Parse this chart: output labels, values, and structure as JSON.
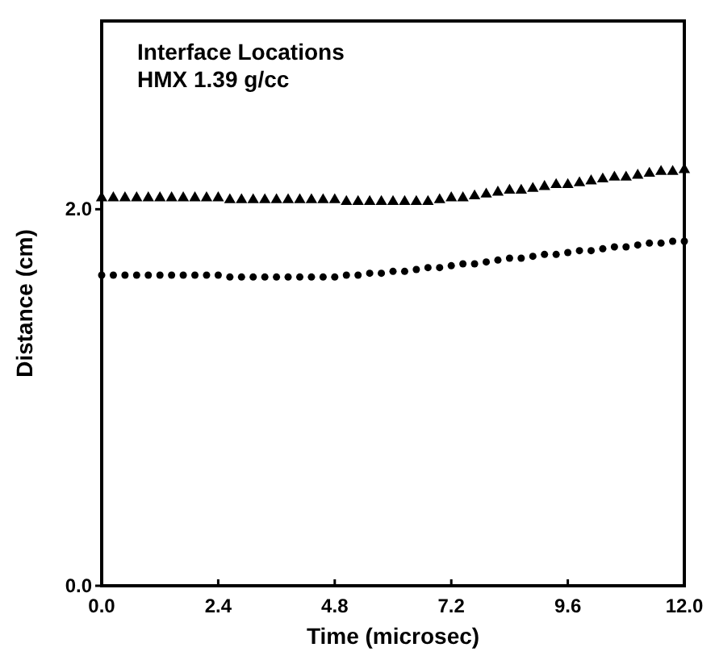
{
  "chart_data": {
    "type": "scatter",
    "title": "Interface Locations",
    "subtitle": "HMX 1.39 g/cc",
    "xlabel": "Time (microsec)",
    "ylabel": "Distance (cm)",
    "x": [
      0,
      0.24,
      0.48,
      0.72,
      0.96,
      1.2,
      1.44,
      1.68,
      1.92,
      2.16,
      2.4,
      2.64,
      2.88,
      3.12,
      3.36,
      3.6,
      3.84,
      4.08,
      4.32,
      4.56,
      4.8,
      5.04,
      5.28,
      5.52,
      5.76,
      6,
      6.24,
      6.48,
      6.72,
      6.96,
      7.2,
      7.44,
      7.68,
      7.92,
      8.16,
      8.4,
      8.64,
      8.88,
      9.12,
      9.36,
      9.6,
      9.84,
      10.08,
      10.32,
      10.56,
      10.8,
      11.04,
      11.28,
      11.52,
      11.76,
      12
    ],
    "series": [
      {
        "color": "#000000",
        "marker": "triangle",
        "values": [
          2.06,
          2.06,
          2.06,
          2.06,
          2.06,
          2.06,
          2.06,
          2.06,
          2.06,
          2.06,
          2.06,
          2.05,
          2.05,
          2.05,
          2.05,
          2.05,
          2.05,
          2.05,
          2.05,
          2.05,
          2.05,
          2.04,
          2.04,
          2.04,
          2.04,
          2.04,
          2.04,
          2.04,
          2.04,
          2.05,
          2.06,
          2.06,
          2.07,
          2.08,
          2.09,
          2.1,
          2.1,
          2.11,
          2.12,
          2.13,
          2.13,
          2.14,
          2.15,
          2.16,
          2.17,
          2.17,
          2.18,
          2.19,
          2.2,
          2.2,
          2.21
        ]
      },
      {
        "color": "#000000",
        "marker": "circle",
        "values": [
          1.65,
          1.65,
          1.65,
          1.65,
          1.65,
          1.65,
          1.65,
          1.65,
          1.65,
          1.65,
          1.65,
          1.64,
          1.64,
          1.64,
          1.64,
          1.64,
          1.64,
          1.64,
          1.64,
          1.64,
          1.64,
          1.65,
          1.65,
          1.66,
          1.66,
          1.67,
          1.67,
          1.68,
          1.69,
          1.69,
          1.7,
          1.71,
          1.71,
          1.72,
          1.73,
          1.74,
          1.74,
          1.75,
          1.76,
          1.76,
          1.77,
          1.78,
          1.78,
          1.79,
          1.8,
          1.8,
          1.81,
          1.82,
          1.82,
          1.83,
          1.83
        ]
      }
    ],
    "xlim": [
      0,
      12
    ],
    "ylim": [
      0,
      3
    ],
    "xticks": [
      {
        "value": 0,
        "label": "0.0"
      },
      2.4,
      4.8,
      7.2,
      9.6,
      {
        "value": 12,
        "label": "12.0"
      }
    ],
    "yticks": [
      {
        "value": 0,
        "label": "0.0"
      },
      {
        "value": 2,
        "label": "2.0"
      }
    ],
    "grid": false
  }
}
